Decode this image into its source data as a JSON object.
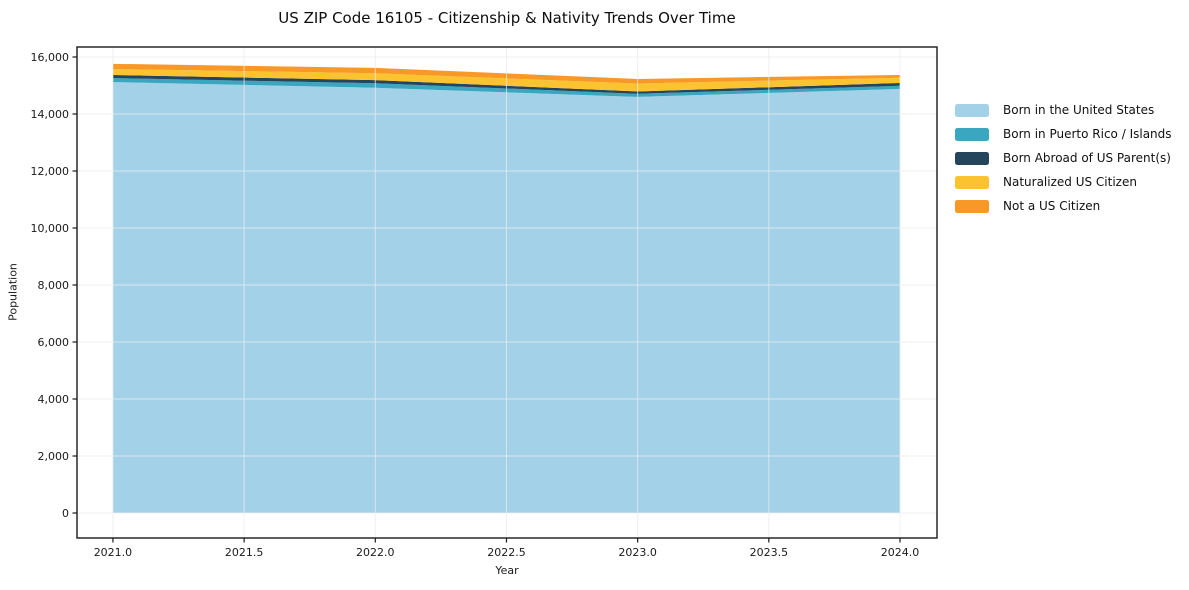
{
  "title": "US ZIP Code 16105 - Citizenship & Nativity Trends Over Time",
  "axes": {
    "xlabel": "Year",
    "ylabel": "Population"
  },
  "frame_color": "#1a1a1a",
  "grid_color": "rgba(235,235,235,0.75)",
  "chart_data": {
    "type": "area",
    "stacked": true,
    "title": "US ZIP Code 16105 - Citizenship & Nativity Trends Over Time",
    "xlabel": "Year",
    "ylabel": "Population",
    "x": [
      2021,
      2022,
      2023,
      2024
    ],
    "series": [
      {
        "name": "Born in the United States",
        "color": "#a3d2e8",
        "values": [
          15120,
          14920,
          14600,
          14880
        ]
      },
      {
        "name": "Born in Puerto Rico / Islands",
        "color": "#3aa6c0",
        "values": [
          140,
          160,
          110,
          110
        ]
      },
      {
        "name": "Born Abroad of US Parent(s)",
        "color": "#25455c",
        "values": [
          110,
          110,
          80,
          100
        ]
      },
      {
        "name": "Naturalized US Citizen",
        "color": "#fcc330",
        "values": [
          210,
          240,
          280,
          180
        ]
      },
      {
        "name": "Not a US Citizen",
        "color": "#f89827",
        "values": [
          180,
          190,
          160,
          100
        ]
      }
    ],
    "stack_totals": [
      15760,
      15620,
      15230,
      15370
    ],
    "xlim": [
      2020.863,
      2024.141
    ],
    "ylim": [
      -877,
      16351
    ],
    "xticks": {
      "values": [
        2021.0,
        2021.5,
        2022.0,
        2022.5,
        2023.0,
        2023.5,
        2024.0
      ],
      "labels": [
        "2021.0",
        "2021.5",
        "2022.0",
        "2022.5",
        "2023.0",
        "2023.5",
        "2024.0"
      ]
    },
    "yticks": {
      "values": [
        0,
        2000,
        4000,
        6000,
        8000,
        10000,
        12000,
        14000,
        16000
      ],
      "labels": [
        "0",
        "2,000",
        "4,000",
        "6,000",
        "8,000",
        "10,000",
        "12,000",
        "14,000",
        "16,000"
      ]
    },
    "grid": true,
    "grid_above_data": true,
    "legend_position": "right"
  }
}
